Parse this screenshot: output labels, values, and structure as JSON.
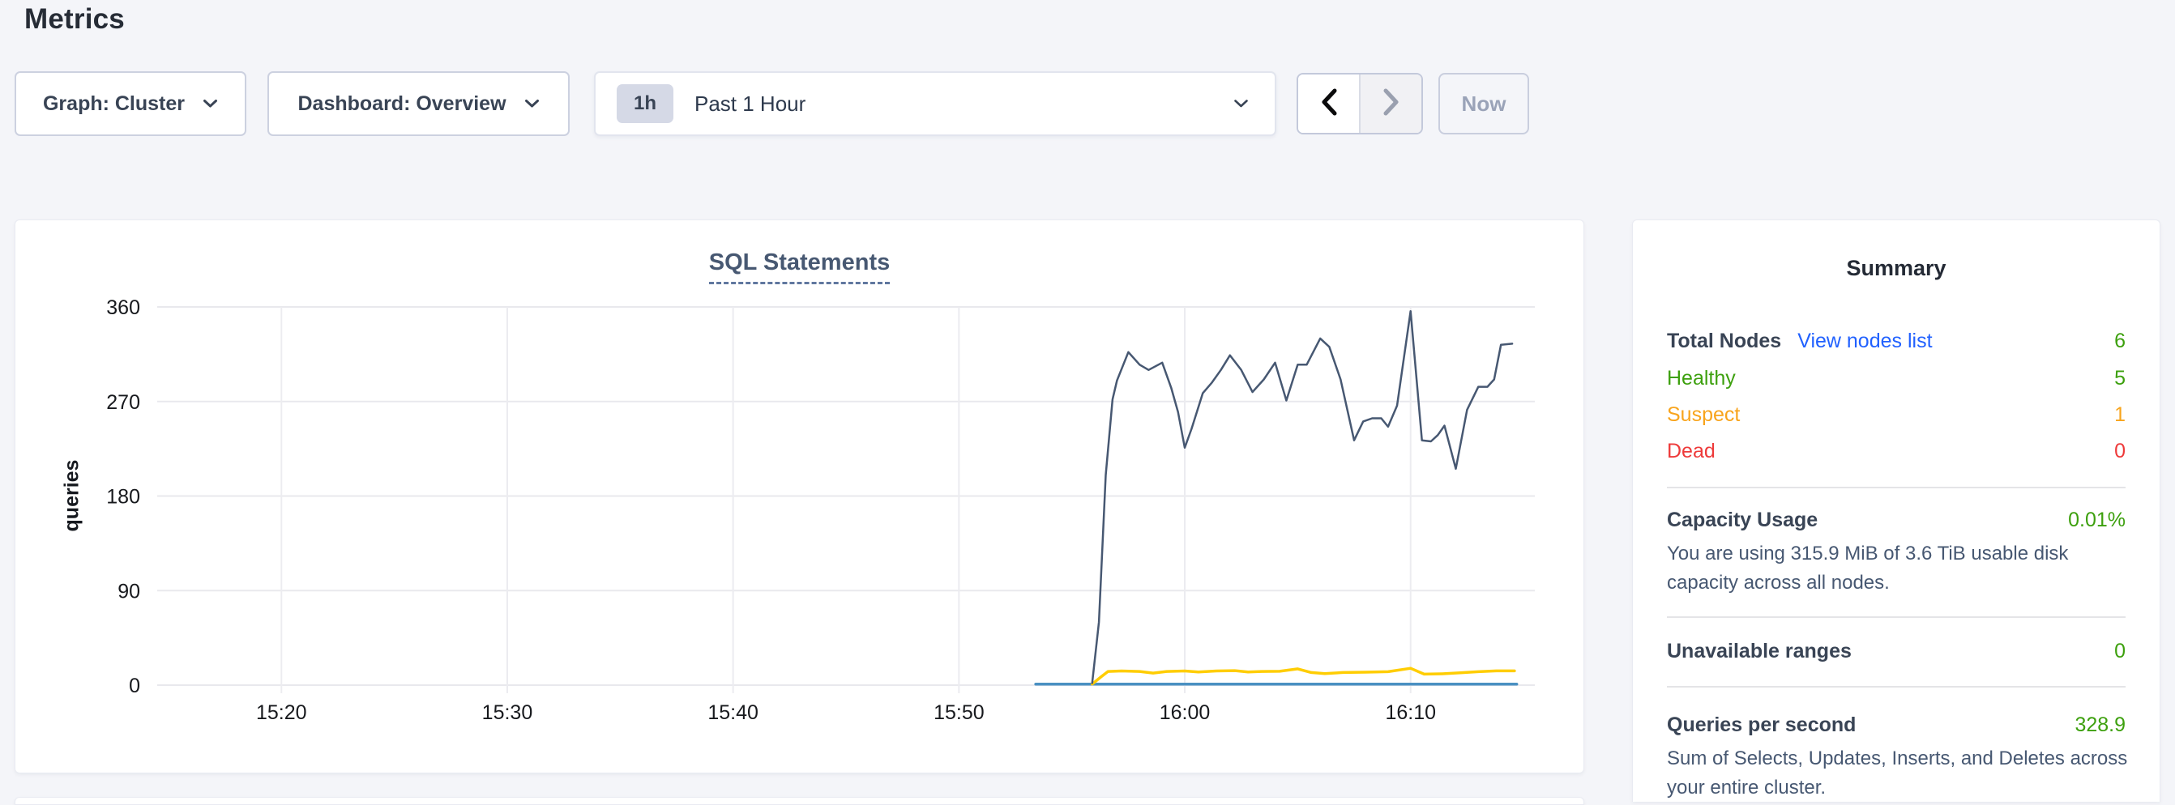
{
  "page": {
    "title": "Metrics"
  },
  "toolbar": {
    "graph_label": "Graph: Cluster",
    "dashboard_label": "Dashboard: Overview",
    "time_badge": "1h",
    "time_label": "Past 1 Hour",
    "now_label": "Now"
  },
  "chart_data": {
    "type": "line",
    "title": "SQL Statements",
    "ylabel": "queries",
    "xlabel": "",
    "x_unit_note": "x values are minutes after 15:00; axis spans ~15:14.5 to ~16:15.5",
    "xlim": [
      14.5,
      75.5
    ],
    "ylim": [
      0,
      360
    ],
    "grid": true,
    "legend": "none",
    "xticks": [
      {
        "t": 20,
        "label": "15:20"
      },
      {
        "t": 30,
        "label": "15:30"
      },
      {
        "t": 40,
        "label": "15:40"
      },
      {
        "t": 50,
        "label": "15:50"
      },
      {
        "t": 60,
        "label": "16:00"
      },
      {
        "t": 70,
        "label": "16:10"
      }
    ],
    "yticks": [
      {
        "v": 0,
        "label": "0"
      },
      {
        "v": 90,
        "label": "90"
      },
      {
        "v": 180,
        "label": "180"
      },
      {
        "v": 270,
        "label": "270"
      },
      {
        "v": 360,
        "label": "360"
      }
    ],
    "series": [
      {
        "name": "series-navy",
        "color": "#475872",
        "width": 2.5,
        "points": [
          [
            55.9,
            2
          ],
          [
            56.2,
            60
          ],
          [
            56.5,
            200
          ],
          [
            56.8,
            272
          ],
          [
            57.0,
            290
          ],
          [
            57.5,
            317
          ],
          [
            58.0,
            305
          ],
          [
            58.4,
            300
          ],
          [
            59.0,
            307
          ],
          [
            59.4,
            283
          ],
          [
            59.7,
            260
          ],
          [
            60.0,
            226
          ],
          [
            60.3,
            244
          ],
          [
            60.8,
            278
          ],
          [
            61.2,
            288
          ],
          [
            61.6,
            300
          ],
          [
            62.0,
            314
          ],
          [
            62.5,
            300
          ],
          [
            63.0,
            279
          ],
          [
            63.5,
            291
          ],
          [
            64.0,
            307
          ],
          [
            64.5,
            271
          ],
          [
            65.0,
            305
          ],
          [
            65.4,
            305
          ],
          [
            66.0,
            330
          ],
          [
            66.4,
            322
          ],
          [
            66.9,
            291
          ],
          [
            67.5,
            233
          ],
          [
            67.9,
            251
          ],
          [
            68.3,
            254
          ],
          [
            68.7,
            254
          ],
          [
            69.0,
            246
          ],
          [
            69.4,
            266
          ],
          [
            70.0,
            356
          ],
          [
            70.5,
            233
          ],
          [
            70.9,
            232
          ],
          [
            71.2,
            238
          ],
          [
            71.5,
            247
          ],
          [
            72.0,
            206
          ],
          [
            72.5,
            262
          ],
          [
            73.0,
            284
          ],
          [
            73.4,
            284
          ],
          [
            73.7,
            291
          ],
          [
            74.0,
            324
          ],
          [
            74.5,
            325
          ]
        ]
      },
      {
        "name": "series-yellow",
        "color": "#ffcd02",
        "width": 3.5,
        "points": [
          [
            55.9,
            1
          ],
          [
            56.3,
            8
          ],
          [
            56.6,
            13
          ],
          [
            57.2,
            13.5
          ],
          [
            58.0,
            13
          ],
          [
            58.6,
            11.5
          ],
          [
            59.2,
            13
          ],
          [
            60.0,
            13.5
          ],
          [
            60.6,
            12.5
          ],
          [
            61.4,
            13.5
          ],
          [
            62.2,
            13.8
          ],
          [
            62.8,
            12.5
          ],
          [
            63.4,
            13
          ],
          [
            64.2,
            13.2
          ],
          [
            65.0,
            15.5
          ],
          [
            65.6,
            12
          ],
          [
            66.2,
            11
          ],
          [
            67.0,
            12
          ],
          [
            68.0,
            12.3
          ],
          [
            69.0,
            12.8
          ],
          [
            70.0,
            16
          ],
          [
            70.6,
            10.5
          ],
          [
            71.4,
            10.8
          ],
          [
            72.2,
            11.8
          ],
          [
            73.0,
            12.8
          ],
          [
            73.8,
            13.6
          ],
          [
            74.6,
            13.6
          ]
        ]
      },
      {
        "name": "series-blue",
        "color": "#4a90c2",
        "width": 3.5,
        "points": [
          [
            53.4,
            1
          ],
          [
            74.7,
            1
          ]
        ]
      }
    ]
  },
  "summary": {
    "heading": "Summary",
    "total_nodes": {
      "label": "Total Nodes",
      "link": "View nodes list",
      "value": "6"
    },
    "statuses": [
      {
        "label": "Healthy",
        "value": "5",
        "color": "#3da00e"
      },
      {
        "label": "Suspect",
        "value": "1",
        "color": "#f8a41c"
      },
      {
        "label": "Dead",
        "value": "0",
        "color": "#ee3a3a"
      }
    ],
    "capacity": {
      "label": "Capacity Usage",
      "value": "0.01%",
      "desc": "You are using 315.9 MiB of 3.6 TiB usable disk capacity across all nodes."
    },
    "unavailable": {
      "label": "Unavailable ranges",
      "value": "0"
    },
    "qps": {
      "label": "Queries per second",
      "value": "328.9",
      "desc": "Sum of Selects, Updates, Inserts, and Deletes across your entire cluster."
    }
  },
  "colors": {
    "page_bg": "#f4f5f9",
    "link_blue": "#2161ff",
    "value_green": "#3da00e",
    "suspect_orange": "#f8a41c",
    "dead_red": "#ee3a3a",
    "label_dark": "#394455",
    "grid_gray": "#e9e9ed"
  }
}
